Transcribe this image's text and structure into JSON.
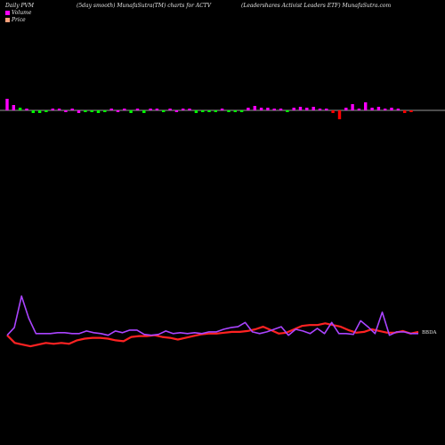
{
  "chart_data": {
    "type": "bar+line",
    "title_left": "Daily PVM",
    "title_center": "(5day smooth) MunafaSutra(TM) charts for ACTV",
    "title_right": "(Leadershares Activist Leaders ETF) MunafaSutra.com",
    "legend": [
      {
        "label": "Volume",
        "color": "#ff00ff"
      },
      {
        "label": "Price",
        "color": "#ffa07a"
      }
    ],
    "colors": {
      "background": "#000000",
      "volume_up": "#ff00ff",
      "volume_down": "#00ff00",
      "volume_spike": "#ff0000",
      "baseline": "#cccccc",
      "price_line": "#ff2222",
      "smooth_line": "#aa44ff",
      "text": "#e6e6e6"
    },
    "volume": {
      "values": [
        13,
        6,
        3,
        2,
        -3,
        -3,
        -2,
        2,
        2,
        -2,
        2,
        -3,
        -2,
        -2,
        -3,
        -2,
        2,
        -2,
        2,
        -3,
        2,
        -3,
        2,
        2,
        -2,
        2,
        -2,
        2,
        2,
        -3,
        -2,
        -2,
        -2,
        2,
        -2,
        -2,
        -2,
        3,
        5,
        3,
        3,
        2,
        2,
        -2,
        3,
        4,
        3,
        4,
        2,
        2,
        -3,
        -10,
        3,
        7,
        2,
        9,
        3,
        4,
        2,
        3,
        2,
        -3,
        -2
      ],
      "colors": [
        "up",
        "up",
        "down",
        "up",
        "down",
        "down",
        "down",
        "up",
        "up",
        "up",
        "up",
        "up",
        "down",
        "down",
        "down",
        "down",
        "up",
        "up",
        "up",
        "down",
        "up",
        "down",
        "up",
        "up",
        "down",
        "up",
        "up",
        "up",
        "up",
        "down",
        "down",
        "down",
        "down",
        "up",
        "down",
        "down",
        "down",
        "up",
        "up",
        "up",
        "up",
        "up",
        "up",
        "down",
        "up",
        "up",
        "up",
        "up",
        "up",
        "up",
        "spike",
        "spike",
        "up",
        "up",
        "up",
        "up",
        "up",
        "up",
        "up",
        "up",
        "up",
        "spike",
        "spike"
      ]
    },
    "price": {
      "last_label": "BBDA",
      "line_values": [
        31.6,
        30.7,
        30.5,
        30.3,
        30.5,
        30.7,
        30.6,
        30.7,
        30.6,
        31.0,
        31.2,
        31.3,
        31.3,
        31.2,
        31.0,
        30.9,
        31.4,
        31.5,
        31.5,
        31.6,
        31.4,
        31.3,
        31.1,
        31.3,
        31.5,
        31.7,
        31.8,
        31.8,
        31.9,
        32.0,
        32.0,
        32.1,
        32.3,
        32.6,
        32.2,
        31.8,
        31.9,
        32.3,
        32.7,
        32.8,
        32.8,
        33.0,
        32.8,
        32.6,
        32.2,
        31.9,
        32.0,
        32.3,
        32.1,
        31.9,
        31.9,
        32.1,
        31.8,
        32.0
      ],
      "smooth_values": [
        31.6,
        32.5,
        36.2,
        33.6,
        31.8,
        31.8,
        31.8,
        31.9,
        31.9,
        31.8,
        31.8,
        32.1,
        31.9,
        31.8,
        31.6,
        32.1,
        31.9,
        32.2,
        32.2,
        31.7,
        31.6,
        31.7,
        32.1,
        31.8,
        31.9,
        31.8,
        31.9,
        31.8,
        32.0,
        32.0,
        32.3,
        32.5,
        32.6,
        33.1,
        32.0,
        31.8,
        32.0,
        32.3,
        32.6,
        31.6,
        32.3,
        32.1,
        31.8,
        32.4,
        31.8,
        33.1,
        31.8,
        31.8,
        31.7,
        33.3,
        32.6,
        31.8,
        34.3,
        31.6,
        32.0,
        32.0,
        31.8,
        31.8
      ]
    }
  }
}
